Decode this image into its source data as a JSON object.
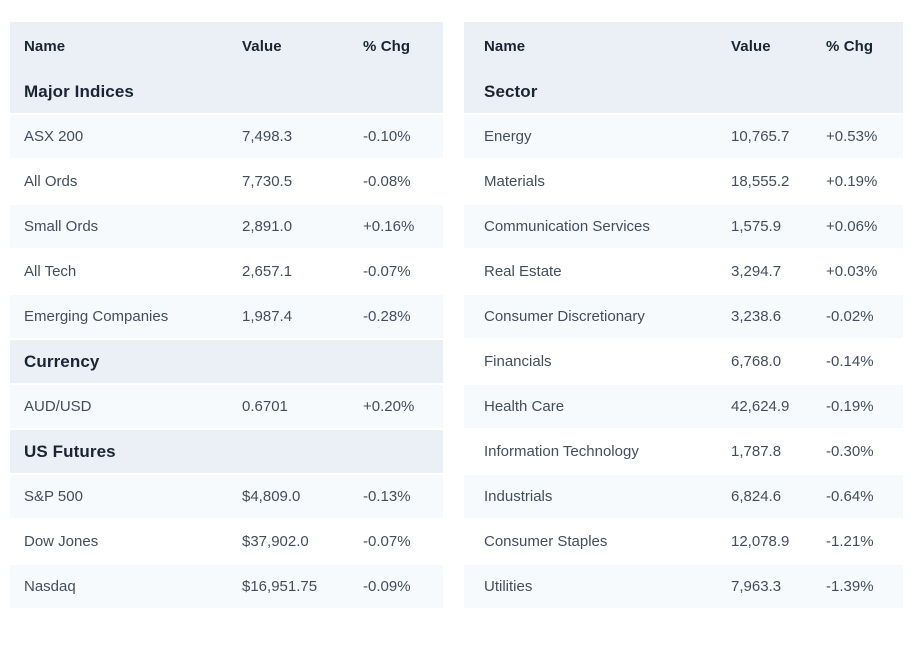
{
  "colors": {
    "positive": "#14805a",
    "negative": "#e8463b",
    "section_bg": "#eaf0f6",
    "alt_row_bg": "#f7fafc",
    "header_text": "#1b2433",
    "row_text": "#434e5c"
  },
  "tables": [
    {
      "id": "market-indices",
      "columns": [
        "Name",
        "Value",
        "% Chg"
      ],
      "sections": [
        {
          "title": "Major Indices",
          "rows": [
            [
              "ASX 200",
              "7,498.3",
              "-0.10%"
            ],
            [
              "All Ords",
              "7,730.5",
              "-0.08%"
            ],
            [
              "Small Ords",
              "2,891.0",
              "+0.16%"
            ],
            [
              "All Tech",
              "2,657.1",
              "-0.07%"
            ],
            [
              "Emerging Companies",
              "1,987.4",
              "-0.28%"
            ]
          ]
        },
        {
          "title": "Currency",
          "rows": [
            [
              "AUD/USD",
              "0.6701",
              "+0.20%"
            ]
          ]
        },
        {
          "title": "US Futures",
          "rows": [
            [
              "S&P 500",
              "$4,809.0",
              "-0.13%"
            ],
            [
              "Dow Jones",
              "$37,902.0",
              "-0.07%"
            ],
            [
              "Nasdaq",
              "$16,951.75",
              "-0.09%"
            ]
          ]
        }
      ]
    },
    {
      "id": "market-sectors",
      "columns": [
        "Name",
        "Value",
        "% Chg"
      ],
      "sections": [
        {
          "title": "Sector",
          "rows": [
            [
              "Energy",
              "10,765.7",
              "+0.53%"
            ],
            [
              "Materials",
              "18,555.2",
              "+0.19%"
            ],
            [
              "Communication Services",
              "1,575.9",
              "+0.06%"
            ],
            [
              "Real Estate",
              "3,294.7",
              "+0.03%"
            ],
            [
              "Consumer Discretionary",
              "3,238.6",
              "-0.02%"
            ],
            [
              "Financials",
              "6,768.0",
              "-0.14%"
            ],
            [
              "Health Care",
              "42,624.9",
              "-0.19%"
            ],
            [
              "Information Technology",
              "1,787.8",
              "-0.30%"
            ],
            [
              "Industrials",
              "6,824.6",
              "-0.64%"
            ],
            [
              "Consumer Staples",
              "12,078.9",
              "-1.21%"
            ],
            [
              "Utilities",
              "7,963.3",
              "-1.39%"
            ]
          ]
        }
      ]
    }
  ]
}
